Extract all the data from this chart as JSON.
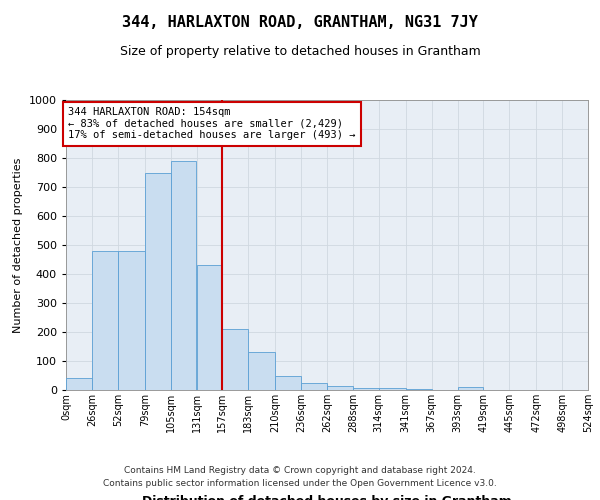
{
  "title": "344, HARLAXTON ROAD, GRANTHAM, NG31 7JY",
  "subtitle": "Size of property relative to detached houses in Grantham",
  "xlabel": "Distribution of detached houses by size in Grantham",
  "ylabel": "Number of detached properties",
  "footer_line1": "Contains HM Land Registry data © Crown copyright and database right 2024.",
  "footer_line2": "Contains public sector information licensed under the Open Government Licence v3.0.",
  "bin_edges": [
    0,
    26,
    52,
    79,
    105,
    131,
    157,
    183,
    210,
    236,
    262,
    288,
    314,
    341,
    367,
    393,
    419,
    445,
    472,
    498,
    524
  ],
  "bar_heights": [
    40,
    480,
    480,
    750,
    790,
    430,
    210,
    130,
    50,
    25,
    15,
    8,
    8,
    5,
    0,
    10,
    0,
    0,
    0,
    0
  ],
  "bar_color": "#c9ddf0",
  "bar_edge_color": "#5a9fd4",
  "property_line_x": 157,
  "annotation_line1": "344 HARLAXTON ROAD: 154sqm",
  "annotation_line2": "← 83% of detached houses are smaller (2,429)",
  "annotation_line3": "17% of semi-detached houses are larger (493) →",
  "annotation_box_color": "#ffffff",
  "annotation_box_edge_color": "#cc0000",
  "grid_color": "#d0d8e0",
  "ylim": [
    0,
    1000
  ],
  "yticks": [
    0,
    100,
    200,
    300,
    400,
    500,
    600,
    700,
    800,
    900,
    1000
  ],
  "bg_color": "#e8eef5",
  "title_fontsize": 11,
  "subtitle_fontsize": 9
}
